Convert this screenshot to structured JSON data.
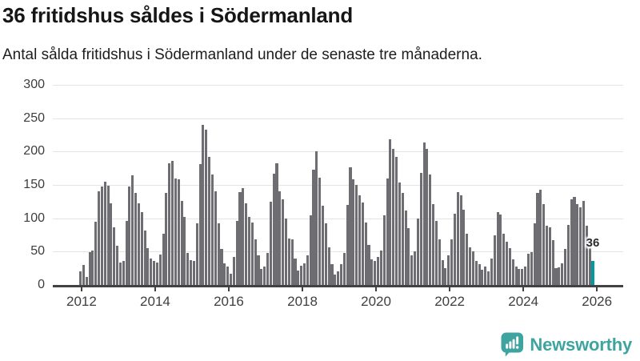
{
  "title": "36 fritidshus såldes i Södermanland",
  "subtitle": "Antal sålda fritidshus i Södermanland under de senaste tre månaderna.",
  "branding": {
    "logo_text": "Newsworthy",
    "logo_color": "#3fa4a0",
    "logo_icon": "newsworthy-speech-bubble-barchart-icon"
  },
  "chart_data": {
    "type": "bar",
    "title": "36 fritidshus såldes i Södermanland",
    "xlabel": "",
    "ylabel": "",
    "frequency": "monthly",
    "x_start": "2012-01",
    "x_end": "2025-12",
    "ylim": [
      0,
      300
    ],
    "y_ticks": [
      0,
      50,
      100,
      150,
      200,
      250,
      300
    ],
    "x_tick_labels": [
      "2012",
      "2014",
      "2016",
      "2018",
      "2020",
      "2022",
      "2024",
      "2026"
    ],
    "grid": "horizontal",
    "legend": "none",
    "bar_color": "#6d6d72",
    "highlight": {
      "index": 167,
      "value": 36,
      "label": "36",
      "color": "#009aa0"
    },
    "values": [
      21,
      30,
      12,
      49,
      52,
      95,
      140,
      148,
      155,
      149,
      123,
      87,
      59,
      34,
      36,
      96,
      148,
      165,
      138,
      123,
      109,
      82,
      55,
      40,
      36,
      34,
      46,
      77,
      138,
      182,
      186,
      160,
      158,
      126,
      102,
      48,
      37,
      36,
      92,
      181,
      240,
      233,
      192,
      166,
      141,
      92,
      54,
      32,
      28,
      17,
      42,
      96,
      139,
      145,
      122,
      102,
      94,
      68,
      44,
      24,
      28,
      48,
      125,
      167,
      182,
      140,
      128,
      100,
      70,
      69,
      40,
      22,
      29,
      32,
      44,
      105,
      173,
      200,
      161,
      119,
      93,
      56,
      31,
      16,
      21,
      31,
      48,
      120,
      177,
      158,
      150,
      135,
      124,
      94,
      60,
      39,
      36,
      42,
      52,
      104,
      160,
      218,
      204,
      192,
      154,
      138,
      112,
      85,
      44,
      50,
      100,
      168,
      214,
      204,
      166,
      121,
      96,
      68,
      37,
      25,
      44,
      69,
      107,
      139,
      135,
      113,
      77,
      57,
      50,
      36,
      31,
      23,
      28,
      20,
      40,
      75,
      109,
      106,
      77,
      65,
      55,
      38,
      28,
      24,
      24,
      28,
      47,
      49,
      93,
      138,
      143,
      121,
      89,
      87,
      67,
      25,
      27,
      32,
      54,
      90,
      128,
      132,
      121,
      117,
      126,
      89,
      66,
      36
    ]
  }
}
